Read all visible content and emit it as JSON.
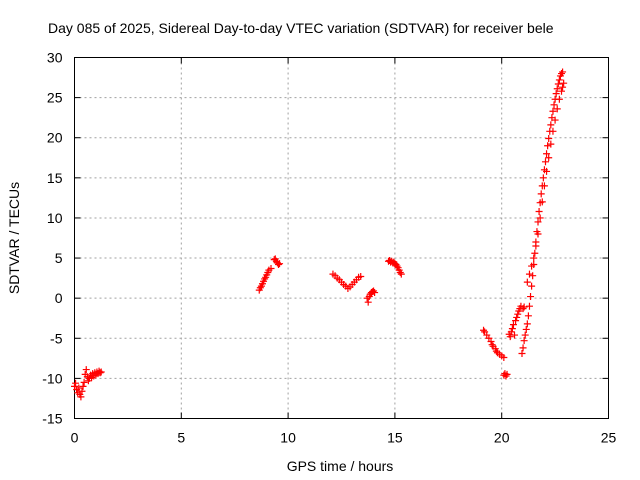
{
  "chart_data": {
    "type": "scatter",
    "title": "Day 085 of 2025, Sidereal Day-to-day VTEC variation (SDTVAR) for receiver bele",
    "xlabel": "GPS time / hours",
    "ylabel": "SDTVAR / TECUs",
    "xlim": [
      0,
      25
    ],
    "ylim": [
      -15,
      30
    ],
    "xticks": [
      0,
      5,
      10,
      15,
      20,
      25
    ],
    "yticks": [
      -15,
      -10,
      -5,
      0,
      5,
      10,
      15,
      20,
      25,
      30
    ],
    "grid": true,
    "marker": "+",
    "color": "#ff0000",
    "series": [
      {
        "name": "SDTVAR",
        "segments": [
          [
            [
              0.0,
              -11.0
            ],
            [
              0.05,
              -10.6
            ],
            [
              0.1,
              -11.4
            ],
            [
              0.15,
              -11.8
            ],
            [
              0.2,
              -11.2
            ],
            [
              0.25,
              -12.0
            ],
            [
              0.3,
              -12.3
            ],
            [
              0.35,
              -11.6
            ],
            [
              0.4,
              -11.0
            ],
            [
              0.45,
              -10.5
            ],
            [
              0.5,
              -9.5
            ],
            [
              0.55,
              -8.9
            ],
            [
              0.6,
              -9.8
            ],
            [
              0.65,
              -10.3
            ],
            [
              0.7,
              -10.0
            ],
            [
              0.75,
              -9.6
            ],
            [
              0.8,
              -9.9
            ],
            [
              0.85,
              -9.4
            ],
            [
              0.9,
              -9.7
            ],
            [
              0.95,
              -9.3
            ],
            [
              1.0,
              -9.6
            ],
            [
              1.05,
              -9.2
            ],
            [
              1.1,
              -9.4
            ],
            [
              1.15,
              -9.1
            ],
            [
              1.2,
              -9.3
            ],
            [
              1.25,
              -9.2
            ]
          ],
          [
            [
              8.65,
              1.0
            ],
            [
              8.7,
              1.3
            ],
            [
              8.75,
              1.5
            ],
            [
              8.8,
              1.8
            ],
            [
              8.85,
              2.1
            ],
            [
              8.9,
              2.4
            ],
            [
              8.95,
              2.6
            ],
            [
              9.0,
              2.9
            ],
            [
              9.05,
              3.2
            ],
            [
              9.1,
              3.5
            ],
            [
              9.2,
              3.7
            ]
          ],
          [
            [
              9.35,
              4.8
            ],
            [
              9.4,
              4.9
            ],
            [
              9.45,
              4.6
            ],
            [
              9.5,
              4.4
            ],
            [
              9.55,
              4.2
            ],
            [
              9.6,
              4.3
            ]
          ],
          [
            [
              12.1,
              3.0
            ],
            [
              12.2,
              2.8
            ],
            [
              12.3,
              2.5
            ],
            [
              12.4,
              2.3
            ],
            [
              12.5,
              2.0
            ],
            [
              12.6,
              1.7
            ],
            [
              12.7,
              1.5
            ],
            [
              12.8,
              1.2
            ],
            [
              12.9,
              1.4
            ],
            [
              13.0,
              1.7
            ],
            [
              13.1,
              2.0
            ],
            [
              13.2,
              2.3
            ],
            [
              13.3,
              2.6
            ],
            [
              13.4,
              2.7
            ]
          ],
          [
            [
              13.7,
              0.0
            ],
            [
              13.75,
              -0.5
            ],
            [
              13.8,
              0.2
            ],
            [
              13.85,
              0.5
            ],
            [
              13.9,
              0.7
            ],
            [
              13.95,
              0.8
            ],
            [
              14.0,
              0.9
            ],
            [
              14.05,
              0.7
            ]
          ],
          [
            [
              14.7,
              4.6
            ],
            [
              14.75,
              4.7
            ],
            [
              14.8,
              4.5
            ],
            [
              14.85,
              4.6
            ],
            [
              14.9,
              4.4
            ],
            [
              14.95,
              4.5
            ],
            [
              15.0,
              4.3
            ],
            [
              15.05,
              4.2
            ],
            [
              15.1,
              4.0
            ],
            [
              15.15,
              3.8
            ],
            [
              15.2,
              3.5
            ],
            [
              15.25,
              3.2
            ],
            [
              15.3,
              3.0
            ]
          ],
          [
            [
              19.15,
              -4.0
            ],
            [
              19.2,
              -4.2
            ],
            [
              19.3,
              -4.6
            ],
            [
              19.4,
              -5.0
            ],
            [
              19.5,
              -5.4
            ],
            [
              19.55,
              -5.8
            ],
            [
              19.6,
              -6.0
            ],
            [
              19.7,
              -6.3
            ],
            [
              19.75,
              -6.6
            ],
            [
              19.8,
              -6.8
            ],
            [
              19.9,
              -7.0
            ],
            [
              20.0,
              -7.2
            ],
            [
              20.1,
              -7.4
            ]
          ],
          [
            [
              20.1,
              -9.6
            ],
            [
              20.15,
              -9.4
            ],
            [
              20.2,
              -9.7
            ],
            [
              20.25,
              -9.5
            ]
          ],
          [
            [
              20.35,
              -4.5
            ],
            [
              20.4,
              -4.8
            ],
            [
              20.45,
              -4.2
            ],
            [
              20.5,
              -3.8
            ],
            [
              20.55,
              -3.3
            ],
            [
              20.6,
              -4.6
            ],
            [
              20.65,
              -2.8
            ],
            [
              20.7,
              -2.4
            ],
            [
              20.75,
              -2.0
            ],
            [
              20.8,
              -1.6
            ],
            [
              20.85,
              -1.3
            ],
            [
              20.9,
              -1.0
            ],
            [
              21.0,
              -1.3
            ],
            [
              21.05,
              -1.1
            ]
          ],
          [
            [
              20.95,
              -6.9
            ],
            [
              21.0,
              -6.2
            ],
            [
              21.05,
              -5.3
            ],
            [
              21.1,
              -4.6
            ],
            [
              21.15,
              -3.9
            ],
            [
              21.2,
              -3.2
            ],
            [
              21.25,
              -2.2
            ],
            [
              21.3,
              -1.0
            ],
            [
              21.35,
              0.2
            ],
            [
              21.4,
              1.5
            ],
            [
              21.45,
              2.8
            ],
            [
              21.5,
              4.2
            ],
            [
              21.55,
              5.6
            ],
            [
              21.6,
              7.0
            ],
            [
              21.65,
              8.3
            ],
            [
              21.7,
              9.5
            ],
            [
              21.75,
              10.8
            ],
            [
              21.8,
              11.9
            ],
            [
              21.85,
              13.0
            ],
            [
              21.9,
              14.0
            ],
            [
              21.95,
              15.0
            ],
            [
              22.0,
              16.0
            ],
            [
              22.05,
              17.0
            ],
            [
              22.1,
              18.0
            ],
            [
              22.15,
              19.0
            ],
            [
              22.2,
              19.9
            ],
            [
              22.25,
              20.8
            ],
            [
              22.3,
              21.6
            ],
            [
              22.35,
              22.5
            ],
            [
              22.4,
              23.3
            ],
            [
              22.45,
              24.1
            ],
            [
              22.5,
              24.8
            ],
            [
              22.55,
              25.5
            ],
            [
              22.6,
              26.1
            ],
            [
              22.65,
              26.7
            ],
            [
              22.7,
              27.2
            ],
            [
              22.75,
              27.7
            ],
            [
              22.8,
              28.0
            ],
            [
              22.85,
              28.2
            ]
          ],
          [
            [
              21.2,
              2.0
            ],
            [
              21.3,
              3.0
            ],
            [
              21.4,
              4.0
            ],
            [
              21.5,
              5.0
            ],
            [
              21.6,
              6.5
            ],
            [
              21.7,
              8.0
            ],
            [
              21.8,
              10.0
            ],
            [
              21.9,
              12.0
            ],
            [
              22.0,
              14.0
            ],
            [
              22.1,
              15.8
            ],
            [
              22.2,
              17.5
            ],
            [
              22.3,
              19.2
            ],
            [
              22.4,
              20.8
            ],
            [
              22.5,
              22.2
            ],
            [
              22.6,
              23.6
            ],
            [
              22.7,
              24.8
            ],
            [
              22.8,
              25.8
            ],
            [
              22.85,
              26.3
            ],
            [
              22.9,
              26.8
            ]
          ]
        ]
      }
    ]
  }
}
